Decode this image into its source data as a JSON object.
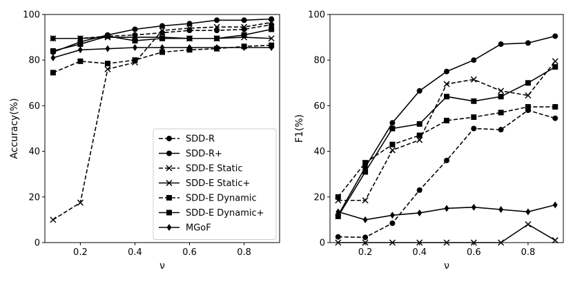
{
  "chart_data": [
    {
      "type": "line",
      "panel": "left",
      "xlabel": "ν",
      "ylabel": "Accuracy(%)",
      "xlim": [
        0.07,
        0.93
      ],
      "ylim": [
        0,
        100
      ],
      "xticks": [
        0.2,
        0.4,
        0.6,
        0.8
      ],
      "xtick_labels": [
        "0.2",
        "0.4",
        "0.6",
        "0.8"
      ],
      "yticks": [
        0,
        20,
        40,
        60,
        80,
        100
      ],
      "ytick_labels": [
        "0",
        "20",
        "40",
        "60",
        "80",
        "100"
      ],
      "x": [
        0.1,
        0.2,
        0.3,
        0.4,
        0.5,
        0.6,
        0.7,
        0.8,
        0.9
      ],
      "legend_position": "lower-right",
      "series": [
        {
          "name": "SDD-R",
          "values": [
            89.5,
            89.5,
            90.5,
            91,
            92,
            93,
            93,
            93.5,
            95.5
          ]
        },
        {
          "name": "SDD-R+",
          "values": [
            83.5,
            88,
            91,
            93.5,
            95,
            96,
            97.5,
            97.5,
            98
          ]
        },
        {
          "name": "SDD-E Static",
          "values": [
            10,
            17.5,
            76,
            79,
            93,
            94,
            94.5,
            94.5,
            96.5
          ]
        },
        {
          "name": "SDD-E Static+",
          "values": [
            89.5,
            89.5,
            90,
            90,
            90,
            89.5,
            89.5,
            90,
            89.5
          ]
        },
        {
          "name": "SDD-E Dynamic",
          "values": [
            74.5,
            79.5,
            78.5,
            80,
            83.5,
            84.5,
            85,
            86,
            86.5
          ]
        },
        {
          "name": "SDD-E Dynamic+",
          "values": [
            84,
            87,
            90.5,
            88.5,
            89.5,
            89.5,
            89.5,
            91,
            93.5
          ]
        },
        {
          "name": "MGoF",
          "values": [
            81,
            84.5,
            85,
            85.5,
            85.5,
            85.5,
            85.5,
            85.5,
            85.5
          ]
        }
      ]
    },
    {
      "type": "line",
      "panel": "right",
      "xlabel": "ν",
      "ylabel": "F1(%)",
      "xlim": [
        0.07,
        0.93
      ],
      "ylim": [
        0,
        100
      ],
      "xticks": [
        0.2,
        0.4,
        0.6,
        0.8
      ],
      "xtick_labels": [
        "0.2",
        "0.4",
        "0.6",
        "0.8"
      ],
      "yticks": [
        0,
        20,
        40,
        60,
        80,
        100
      ],
      "ytick_labels": [
        "0",
        "20",
        "40",
        "60",
        "80",
        "100"
      ],
      "x": [
        0.1,
        0.2,
        0.3,
        0.4,
        0.5,
        0.6,
        0.7,
        0.8,
        0.9
      ],
      "series": [
        {
          "name": "SDD-R",
          "values": [
            2.5,
            2.3,
            8.5,
            23,
            36,
            50,
            49.5,
            58,
            54.5
          ]
        },
        {
          "name": "SDD-R+",
          "values": [
            12,
            33,
            52.5,
            66.5,
            75,
            80,
            87,
            87.5,
            90.5
          ]
        },
        {
          "name": "SDD-E Static",
          "values": [
            18.5,
            18.5,
            40.5,
            45,
            69.5,
            71.5,
            66.5,
            64.5,
            79.5
          ]
        },
        {
          "name": "SDD-E Static+",
          "values": [
            0,
            0,
            0,
            0,
            0,
            0,
            0,
            8,
            1
          ]
        },
        {
          "name": "SDD-E Dynamic",
          "values": [
            20,
            35,
            43,
            47,
            53.5,
            55,
            57,
            59.5,
            59.5
          ]
        },
        {
          "name": "SDD-E Dynamic+",
          "values": [
            11.5,
            31,
            50,
            52,
            64,
            62,
            64,
            70,
            77
          ]
        },
        {
          "name": "MGoF",
          "values": [
            13.5,
            10,
            12,
            13,
            15,
            15.5,
            14.5,
            13.5,
            16.5
          ]
        }
      ]
    }
  ],
  "series_styles": [
    {
      "name": "SDD-R",
      "dash": "dashed",
      "marker": "circle",
      "color": "#000000"
    },
    {
      "name": "SDD-R+",
      "dash": "solid",
      "marker": "circle",
      "color": "#000000"
    },
    {
      "name": "SDD-E Static",
      "dash": "dashed",
      "marker": "x",
      "color": "#000000"
    },
    {
      "name": "SDD-E Static+",
      "dash": "solid",
      "marker": "x",
      "color": "#000000"
    },
    {
      "name": "SDD-E Dynamic",
      "dash": "dashed",
      "marker": "square",
      "color": "#000000"
    },
    {
      "name": "SDD-E Dynamic+",
      "dash": "solid",
      "marker": "square",
      "color": "#000000"
    },
    {
      "name": "MGoF",
      "dash": "solid",
      "marker": "diamond",
      "color": "#000000"
    }
  ]
}
